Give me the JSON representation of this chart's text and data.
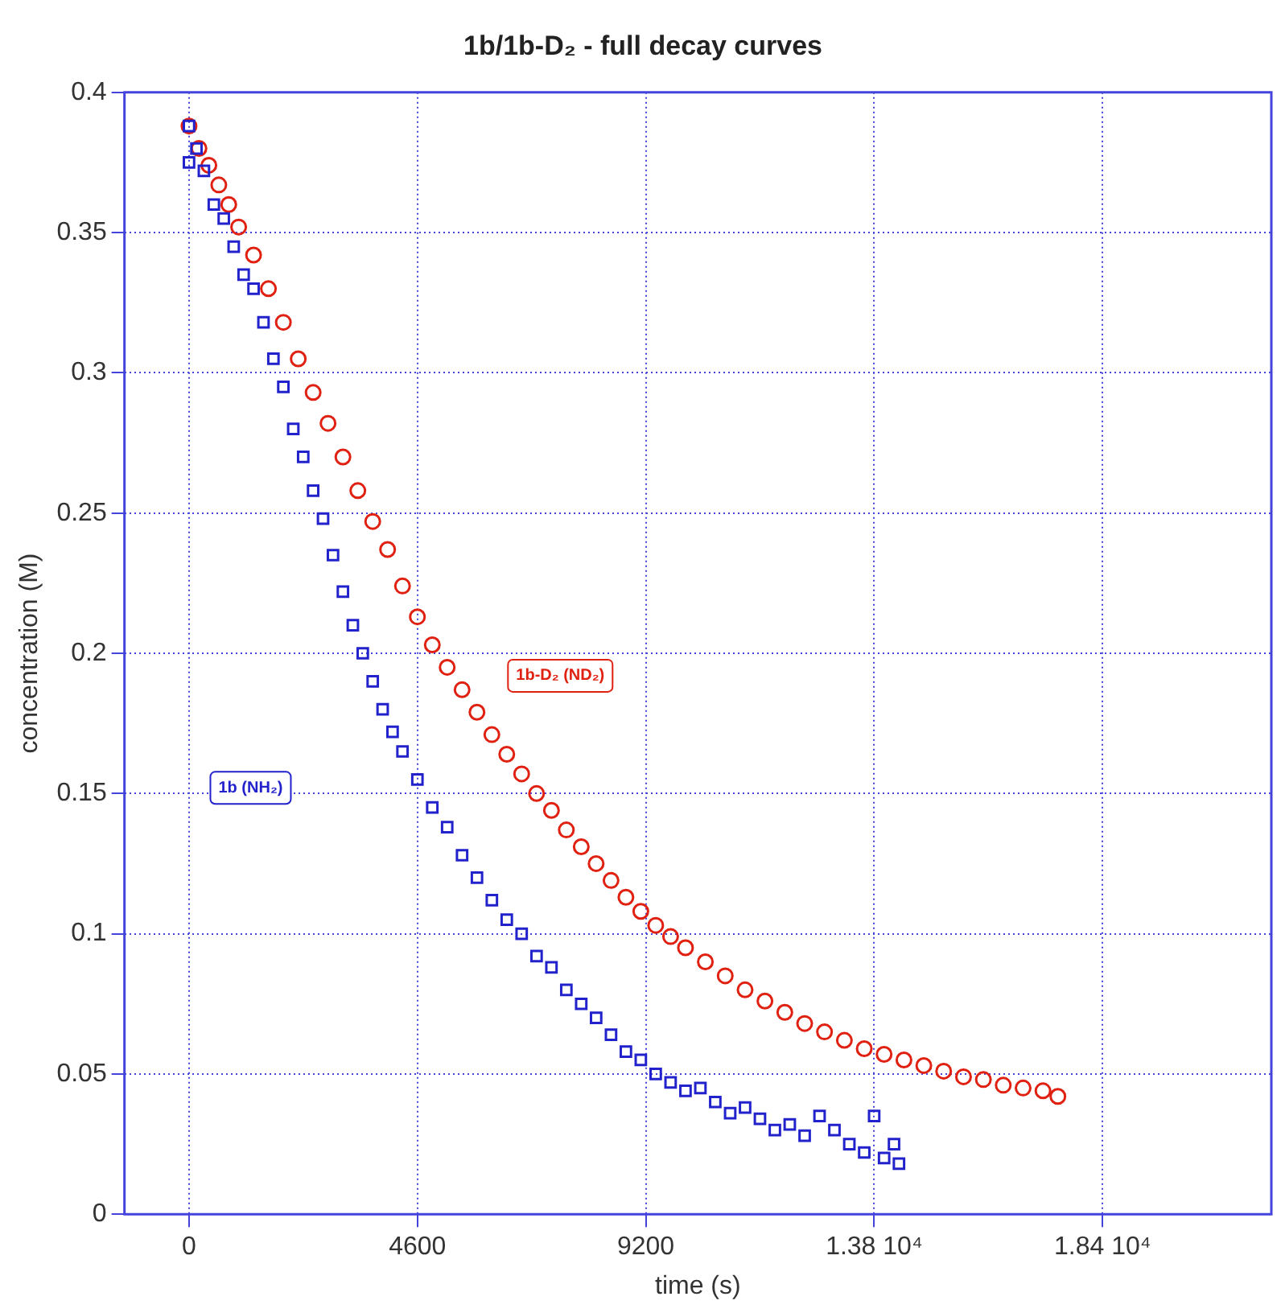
{
  "chart_data": {
    "type": "scatter",
    "title": "1b/1b-D₂ - full decay curves",
    "xlabel": "time (s)",
    "ylabel": "concentration (M)",
    "xlim": [
      -1300,
      21800
    ],
    "xticks": [
      0,
      4600,
      9200,
      {
        "value": 13800,
        "label": "1.38 10⁴"
      },
      {
        "value": 18400,
        "label": "1.84 10⁴"
      }
    ],
    "ylim": [
      0,
      0.4
    ],
    "yticks": [
      0,
      0.05,
      0.1,
      0.15,
      0.2,
      0.25,
      0.3,
      0.35,
      0.4
    ],
    "grid": true,
    "legend": false,
    "series": [
      {
        "name": "1b (NH₂)",
        "color": "#2222cc",
        "marker": "square",
        "x": [
          0,
          0,
          150,
          300,
          500,
          700,
          900,
          1100,
          1300,
          1500,
          1700,
          1900,
          2100,
          2300,
          2500,
          2700,
          2900,
          3100,
          3300,
          3500,
          3700,
          3900,
          4100,
          4300,
          4600,
          4900,
          5200,
          5500,
          5800,
          6100,
          6400,
          6700,
          7000,
          7300,
          7600,
          7900,
          8200,
          8500,
          8800,
          9100,
          9400,
          9700,
          10000,
          10300,
          10600,
          10900,
          11200,
          11500,
          11800,
          12100,
          12400,
          12700,
          13000,
          13300,
          13600,
          13800,
          14000,
          14200,
          14300
        ],
        "values": [
          0.388,
          0.375,
          0.38,
          0.372,
          0.36,
          0.355,
          0.345,
          0.335,
          0.33,
          0.318,
          0.305,
          0.295,
          0.28,
          0.27,
          0.258,
          0.248,
          0.235,
          0.222,
          0.21,
          0.2,
          0.19,
          0.18,
          0.172,
          0.165,
          0.155,
          0.145,
          0.138,
          0.128,
          0.12,
          0.112,
          0.105,
          0.1,
          0.092,
          0.088,
          0.08,
          0.075,
          0.07,
          0.064,
          0.058,
          0.055,
          0.05,
          0.047,
          0.044,
          0.045,
          0.04,
          0.036,
          0.038,
          0.034,
          0.03,
          0.032,
          0.028,
          0.035,
          0.03,
          0.025,
          0.022,
          0.035,
          0.02,
          0.025,
          0.018
        ]
      },
      {
        "name": "1b-D₂ (ND₂)",
        "color": "#e02010",
        "marker": "circle",
        "x": [
          0,
          200,
          400,
          600,
          800,
          1000,
          1300,
          1600,
          1900,
          2200,
          2500,
          2800,
          3100,
          3400,
          3700,
          4000,
          4300,
          4600,
          4900,
          5200,
          5500,
          5800,
          6100,
          6400,
          6700,
          7000,
          7300,
          7600,
          7900,
          8200,
          8500,
          8800,
          9100,
          9400,
          9700,
          10000,
          10400,
          10800,
          11200,
          11600,
          12000,
          12400,
          12800,
          13200,
          13600,
          14000,
          14400,
          14800,
          15200,
          15600,
          16000,
          16400,
          16800,
          17200,
          17500
        ],
        "values": [
          0.388,
          0.38,
          0.374,
          0.367,
          0.36,
          0.352,
          0.342,
          0.33,
          0.318,
          0.305,
          0.293,
          0.282,
          0.27,
          0.258,
          0.247,
          0.237,
          0.224,
          0.213,
          0.203,
          0.195,
          0.187,
          0.179,
          0.171,
          0.164,
          0.157,
          0.15,
          0.144,
          0.137,
          0.131,
          0.125,
          0.119,
          0.113,
          0.108,
          0.103,
          0.099,
          0.095,
          0.09,
          0.085,
          0.08,
          0.076,
          0.072,
          0.068,
          0.065,
          0.062,
          0.059,
          0.057,
          0.055,
          0.053,
          0.051,
          0.049,
          0.048,
          0.046,
          0.045,
          0.044,
          0.042
        ]
      }
    ]
  }
}
